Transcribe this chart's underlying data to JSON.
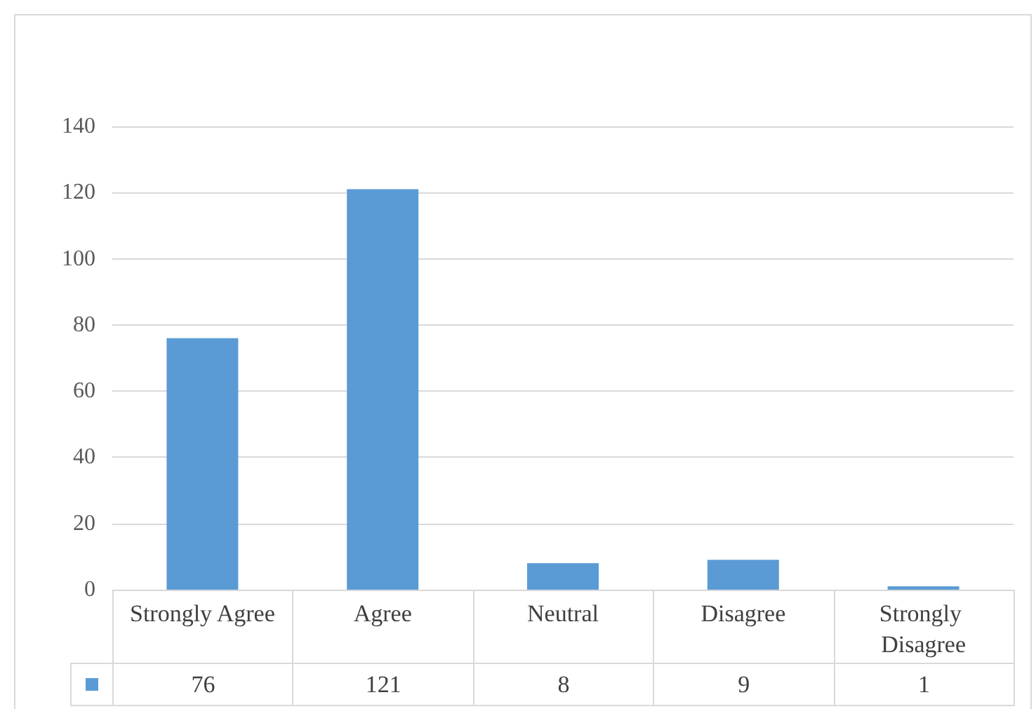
{
  "chart_data": {
    "type": "bar",
    "categories": [
      "Strongly Agree",
      "Agree",
      "Neutral",
      "Disagree",
      "Strongly Disagree"
    ],
    "values": [
      76,
      121,
      8,
      9,
      1
    ],
    "color": "#5b9bd5",
    "ylim": [
      0,
      140
    ],
    "yticks": [
      0,
      20,
      40,
      60,
      80,
      100,
      120,
      140
    ],
    "grid": "y",
    "data_labels": true
  }
}
